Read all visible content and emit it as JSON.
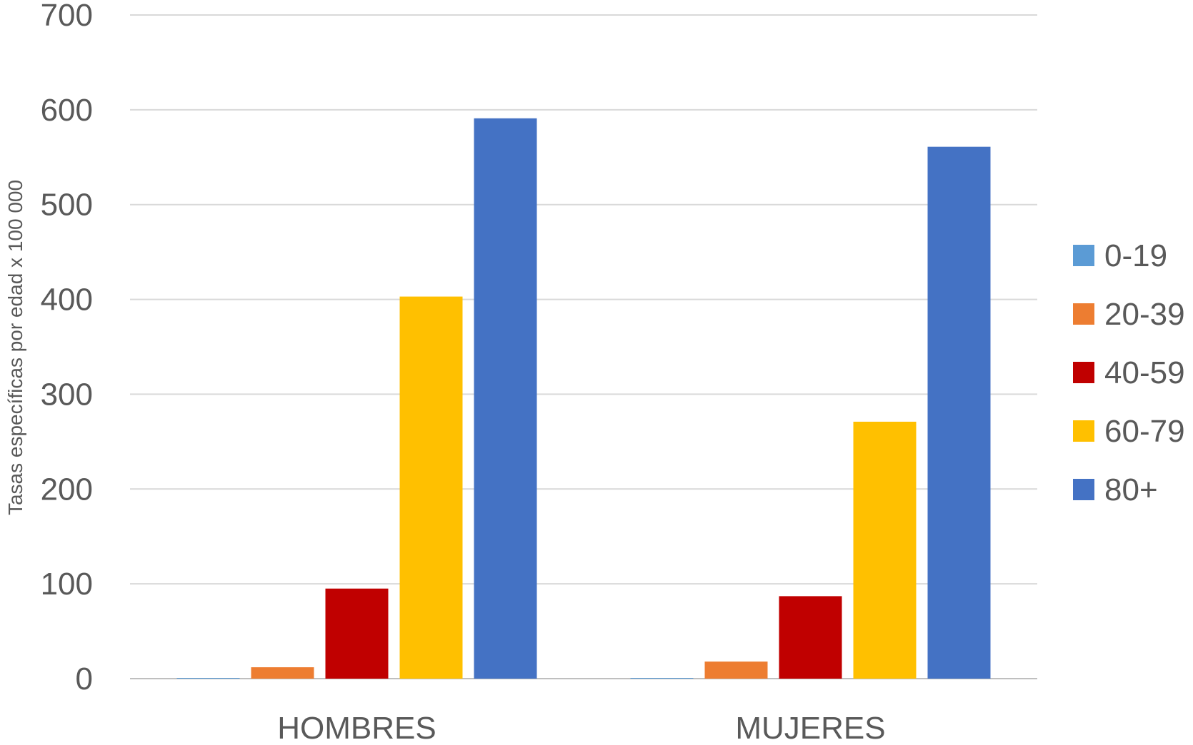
{
  "chart_data": {
    "type": "bar",
    "title": "",
    "xlabel": "",
    "ylabel": "Tasas específicas por edad x 100 000",
    "categories": [
      "HOMBRES",
      "MUJERES"
    ],
    "series": [
      {
        "name": "0-19",
        "color": "#5B9BD5",
        "values": [
          0.5,
          0.5
        ]
      },
      {
        "name": "20-39",
        "color": "#ED7D31",
        "values": [
          12,
          18
        ]
      },
      {
        "name": "40-59",
        "color": "#C00000",
        "values": [
          95,
          87
        ]
      },
      {
        "name": "60-79",
        "color": "#FFC000",
        "values": [
          403,
          271
        ]
      },
      {
        "name": "80+",
        "color": "#4472C4",
        "values": [
          591,
          561
        ]
      }
    ],
    "ylim": [
      0,
      700
    ],
    "yticks": [
      0,
      100,
      200,
      300,
      400,
      500,
      600,
      700
    ],
    "grid": true,
    "legend_position": "right"
  }
}
